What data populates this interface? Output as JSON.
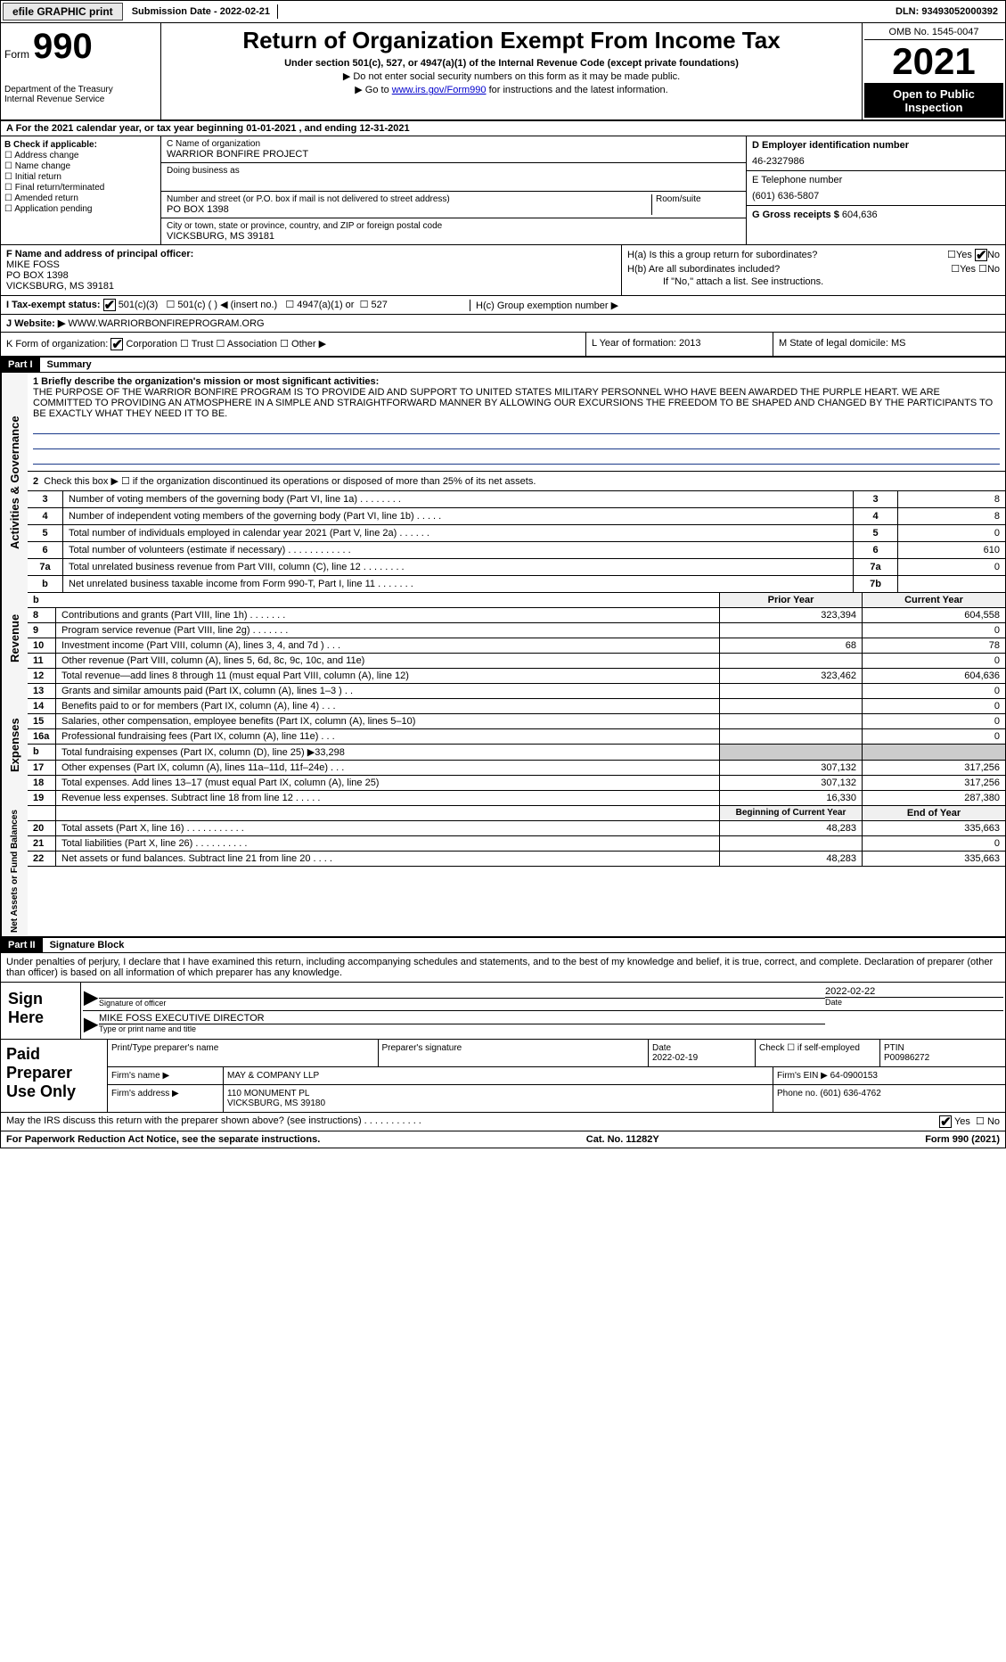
{
  "topbar": {
    "efile_label": "efile GRAPHIC print",
    "submission": "Submission Date - 2022-02-21",
    "dln": "DLN: 93493052000392"
  },
  "header": {
    "form_word": "Form",
    "form_number": "990",
    "dept": "Department of the Treasury",
    "irs": "Internal Revenue Service",
    "title": "Return of Organization Exempt From Income Tax",
    "subtitle": "Under section 501(c), 527, or 4947(a)(1) of the Internal Revenue Code (except private foundations)",
    "note1": "▶ Do not enter social security numbers on this form as it may be made public.",
    "note2_pre": "▶ Go to ",
    "note2_link": "www.irs.gov/Form990",
    "note2_post": " for instructions and the latest information.",
    "omb": "OMB No. 1545-0047",
    "year": "2021",
    "open": "Open to Public Inspection"
  },
  "row_a": "A For the 2021 calendar year, or tax year beginning 01-01-2021    , and ending 12-31-2021",
  "b": {
    "label": "B Check if applicable:",
    "addr": "Address change",
    "name": "Name change",
    "initial": "Initial return",
    "final": "Final return/terminated",
    "amended": "Amended return",
    "app": "Application pending"
  },
  "c": {
    "name_label": "C Name of organization",
    "name": "WARRIOR BONFIRE PROJECT",
    "dba_label": "Doing business as",
    "street_label": "Number and street (or P.O. box if mail is not delivered to street address)",
    "room_label": "Room/suite",
    "street": "PO BOX 1398",
    "city_label": "City or town, state or province, country, and ZIP or foreign postal code",
    "city": "VICKSBURG, MS  39181"
  },
  "d": {
    "ein_label": "D Employer identification number",
    "ein": "46-2327986",
    "tel_label": "E Telephone number",
    "tel": "(601) 636-5807",
    "gross_label": "G Gross receipts $",
    "gross": "604,636"
  },
  "f": {
    "label": "F  Name and address of principal officer:",
    "name": "MIKE FOSS",
    "street": "PO BOX 1398",
    "city": "VICKSBURG, MS  39181"
  },
  "h": {
    "a": "H(a)  Is this a group return for subordinates?",
    "b": "H(b)  Are all subordinates included?",
    "b_note": "If \"No,\" attach a list. See instructions.",
    "c": "H(c)  Group exemption number ▶",
    "yes": "Yes",
    "no": "No"
  },
  "i": {
    "label": "I    Tax-exempt status:",
    "c3": "501(c)(3)",
    "c": "501(c) (  ) ◀ (insert no.)",
    "a1": "4947(a)(1) or",
    "s527": "527"
  },
  "j": {
    "label": "J   Website: ▶",
    "value": "WWW.WARRIORBONFIREPROGRAM.ORG"
  },
  "k": {
    "label": "K Form of organization:",
    "corp": "Corporation",
    "trust": "Trust",
    "assoc": "Association",
    "other": "Other ▶",
    "l": "L Year of formation: 2013",
    "m": "M State of legal domicile: MS"
  },
  "part1": {
    "header": "Part I",
    "title": "Summary",
    "line1_label": "1   Briefly describe the organization's mission or most significant activities:",
    "mission": "THE PURPOSE OF THE WARRIOR BONFIRE PROGRAM IS TO PROVIDE AID AND SUPPORT TO UNITED STATES MILITARY PERSONNEL WHO HAVE BEEN AWARDED THE PURPLE HEART. WE ARE COMMITTED TO PROVIDING AN ATMOSPHERE IN A SIMPLE AND STRAIGHTFORWARD MANNER BY ALLOWING OUR EXCURSIONS THE FREEDOM TO BE SHAPED AND CHANGED BY THE PARTICIPANTS TO BE EXACTLY WHAT THEY NEED IT TO BE.",
    "line2": "Check this box ▶ ☐  if the organization discontinued its operations or disposed of more than 25% of its net assets.",
    "sideA": "Activities & Governance",
    "sideR": "Revenue",
    "sideE": "Expenses",
    "sideN": "Net Assets or Fund Balances",
    "rows_gov": [
      {
        "n": "3",
        "d": "Number of voting members of the governing body (Part VI, line 1a)   .    .    .    .    .    .    .    .",
        "k": "3",
        "v": "8"
      },
      {
        "n": "4",
        "d": "Number of independent voting members of the governing body (Part VI, line 1b)   .    .    .    .    .",
        "k": "4",
        "v": "8"
      },
      {
        "n": "5",
        "d": "Total number of individuals employed in calendar year 2021 (Part V, line 2a)   .    .    .    .    .    .",
        "k": "5",
        "v": "0"
      },
      {
        "n": "6",
        "d": "Total number of volunteers (estimate if necessary)   .    .    .    .    .    .    .    .    .    .    .    .",
        "k": "6",
        "v": "610"
      },
      {
        "n": "7a",
        "d": "Total unrelated business revenue from Part VIII, column (C), line 12   .    .    .    .    .    .    .    .",
        "k": "7a",
        "v": "0"
      },
      {
        "n": "b",
        "d": "Net unrelated business taxable income from Form 990-T, Part I, line 11   .    .    .    .    .    .    .",
        "k": "7b",
        "v": ""
      }
    ],
    "header_prior": "Prior Year",
    "header_current": "Current Year",
    "rows_rev": [
      {
        "n": "8",
        "d": "Contributions and grants (Part VIII, line 1h)   .    .    .    .    .    .    .",
        "p": "323,394",
        "c": "604,558"
      },
      {
        "n": "9",
        "d": "Program service revenue (Part VIII, line 2g)   .    .    .    .    .    .    .",
        "p": "",
        "c": "0"
      },
      {
        "n": "10",
        "d": "Investment income (Part VIII, column (A), lines 3, 4, and 7d )   .    .    .",
        "p": "68",
        "c": "78"
      },
      {
        "n": "11",
        "d": "Other revenue (Part VIII, column (A), lines 5, 6d, 8c, 9c, 10c, and 11e)",
        "p": "",
        "c": "0"
      },
      {
        "n": "12",
        "d": "Total revenue—add lines 8 through 11 (must equal Part VIII, column (A), line 12)",
        "p": "323,462",
        "c": "604,636"
      }
    ],
    "rows_exp": [
      {
        "n": "13",
        "d": "Grants and similar amounts paid (Part IX, column (A), lines 1–3 )  .    .",
        "p": "",
        "c": "0"
      },
      {
        "n": "14",
        "d": "Benefits paid to or for members (Part IX, column (A), line 4)   .    .    .",
        "p": "",
        "c": "0"
      },
      {
        "n": "15",
        "d": "Salaries, other compensation, employee benefits (Part IX, column (A), lines 5–10)",
        "p": "",
        "c": "0"
      },
      {
        "n": "16a",
        "d": "Professional fundraising fees (Part IX, column (A), line 11e)   .    .    .",
        "p": "",
        "c": "0"
      },
      {
        "n": "b",
        "d": "Total fundraising expenses (Part IX, column (D), line 25) ▶33,298",
        "p": "SHADE",
        "c": "SHADE"
      },
      {
        "n": "17",
        "d": "Other expenses (Part IX, column (A), lines 11a–11d, 11f–24e)   .    .    .",
        "p": "307,132",
        "c": "317,256"
      },
      {
        "n": "18",
        "d": "Total expenses. Add lines 13–17 (must equal Part IX, column (A), line 25)",
        "p": "307,132",
        "c": "317,256"
      },
      {
        "n": "19",
        "d": "Revenue less expenses. Subtract line 18 from line 12   .    .    .    .    .",
        "p": "16,330",
        "c": "287,380"
      }
    ],
    "header_begin": "Beginning of Current Year",
    "header_end": "End of Year",
    "rows_net": [
      {
        "n": "20",
        "d": "Total assets (Part X, line 16)   .    .    .    .    .    .    .    .    .    .    .",
        "p": "48,283",
        "c": "335,663"
      },
      {
        "n": "21",
        "d": "Total liabilities (Part X, line 26)   .    .    .    .    .    .    .    .    .    .",
        "p": "",
        "c": "0"
      },
      {
        "n": "22",
        "d": "Net assets or fund balances. Subtract line 21 from line 20   .    .    .    .",
        "p": "48,283",
        "c": "335,663"
      }
    ]
  },
  "part2": {
    "header": "Part II",
    "title": "Signature Block",
    "declaration": "Under penalties of perjury, I declare that I have examined this return, including accompanying schedules and statements, and to the best of my knowledge and belief, it is true, correct, and complete. Declaration of preparer (other than officer) is based on all information of which preparer has any knowledge.",
    "sign_here": "Sign Here",
    "sig_officer": "Signature of officer",
    "date": "Date",
    "sig_date": "2022-02-22",
    "sig_name": "MIKE FOSS  EXECUTIVE DIRECTOR",
    "type_name": "Type or print name and title",
    "paid": "Paid Preparer Use Only",
    "print_name": "Print/Type preparer's name",
    "prep_sig": "Preparer's signature",
    "prep_date_label": "Date",
    "prep_date": "2022-02-19",
    "check_self": "Check ☐ if self-employed",
    "ptin_label": "PTIN",
    "ptin": "P00986272",
    "firm_name_label": "Firm's name     ▶",
    "firm_name": "MAY & COMPANY LLP",
    "firm_ein_label": "Firm's EIN ▶",
    "firm_ein": "64-0900153",
    "firm_addr_label": "Firm's address ▶",
    "firm_addr": "110 MONUMENT PL",
    "firm_city": "VICKSBURG, MS  39180",
    "phone_label": "Phone no.",
    "phone": "(601) 636-4762",
    "may_irs": "May the IRS discuss this return with the preparer shown above? (see instructions)   .    .    .    .    .    .    .    .    .    .    .",
    "yes": "Yes",
    "no": "No"
  },
  "footer": {
    "pra": "For Paperwork Reduction Act Notice, see the separate instructions.",
    "cat": "Cat. No. 11282Y",
    "form": "Form 990 (2021)"
  }
}
